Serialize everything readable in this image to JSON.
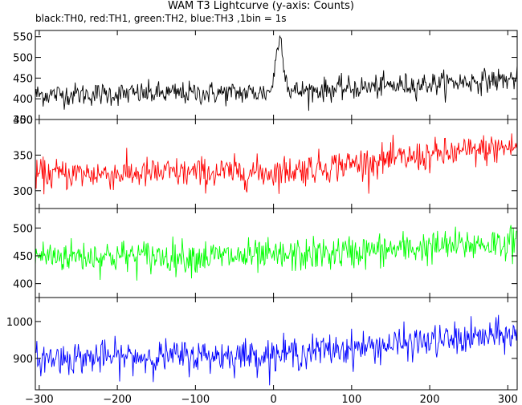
{
  "chart_data": {
    "type": "line",
    "title": "WAM T3 Lightcurve (y-axis: Counts)",
    "subtitle": "black:TH0, red:TH1, green:TH2, blue:TH3 ,1bin = 1s",
    "xlabel": "",
    "xlim": [
      -305,
      312
    ],
    "xticks": [
      -300,
      -200,
      -100,
      0,
      100,
      200,
      300
    ],
    "xtick_labels": [
      "−300",
      "−200",
      "−100",
      "0",
      "100",
      "200",
      "300"
    ],
    "panels": [
      {
        "series": "TH0",
        "color": "#000000",
        "ylim": [
          350,
          565
        ],
        "yticks": [
          350,
          400,
          450,
          500,
          550
        ],
        "ytick_labels": [
          "350",
          "400",
          "450",
          "500",
          "550"
        ],
        "trend": [
          [
            -305,
            410
          ],
          [
            0,
            415
          ],
          [
            312,
            448
          ]
        ],
        "noise_sd": 14,
        "burst": {
          "peak_x": 8,
          "peak_y": 560,
          "width": 5,
          "base": 430
        }
      },
      {
        "series": "TH1",
        "color": "#ff0000",
        "ylim": [
          275,
          400
        ],
        "yticks": [
          300,
          350,
          400
        ],
        "ytick_labels": [
          "300",
          "350",
          "400"
        ],
        "trend": [
          [
            -305,
            323
          ],
          [
            0,
            326
          ],
          [
            312,
            362
          ]
        ],
        "noise_sd": 11
      },
      {
        "series": "TH2",
        "color": "#00ff00",
        "ylim": [
          375,
          535
        ],
        "yticks": [
          400,
          450,
          500
        ],
        "ytick_labels": [
          "400",
          "450",
          "500"
        ],
        "trend": [
          [
            -305,
            450
          ],
          [
            0,
            448
          ],
          [
            312,
            475
          ]
        ],
        "noise_sd": 15
      },
      {
        "series": "TH3",
        "color": "#0000ff",
        "ylim": [
          815,
          1065
        ],
        "yticks": [
          900,
          1000
        ],
        "ytick_labels": [
          "900",
          "1000"
        ],
        "trend": [
          [
            -305,
            900
          ],
          [
            0,
            910
          ],
          [
            312,
            965
          ]
        ],
        "noise_sd": 22
      }
    ]
  }
}
